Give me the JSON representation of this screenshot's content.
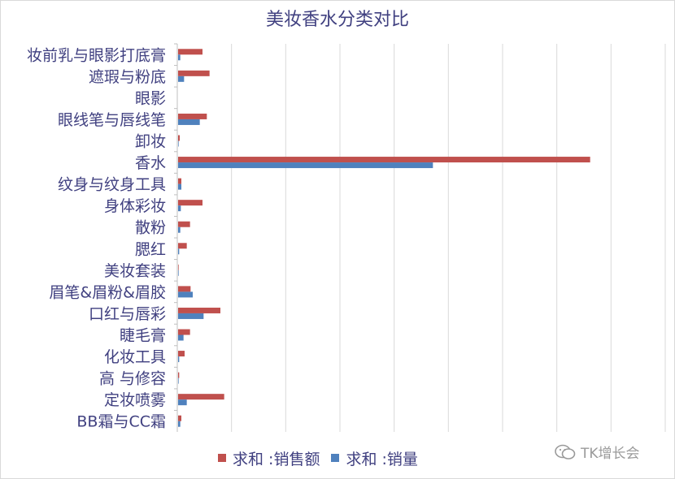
{
  "chart_data": {
    "type": "bar",
    "orientation": "horizontal",
    "title": "美妆香水分类对比",
    "categories": [
      "妆前乳与眼影打底膏",
      "遮瑕与粉底",
      "眼影",
      "眼线笔与唇线笔",
      "卸妆",
      "香水",
      "纹身与纹身工具",
      "身体彩妆",
      "散粉",
      "腮红",
      "美妆套装",
      "眉笔&眉粉&眉胶",
      "口红与唇彩",
      "睫毛膏",
      "化妆工具",
      "高   与修容",
      "定妆喷雾",
      "BB霜与CC霜"
    ],
    "series": [
      {
        "name": "求和   :销售额",
        "color": "#c0504d",
        "values": [
          45,
          58,
          0,
          53,
          3,
          760,
          6,
          45,
          22,
          16,
          1,
          23,
          78,
          22,
          12,
          2,
          85,
          6
        ]
      },
      {
        "name": "求和   :销量",
        "color": "#4f81bd",
        "values": [
          4,
          11,
          0,
          40,
          1,
          470,
          6,
          5,
          4,
          2,
          1,
          27,
          47,
          10,
          2,
          1,
          16,
          4
        ]
      }
    ],
    "xlim": [
      0,
      900
    ],
    "grid": true,
    "legend_position": "bottom"
  },
  "watermark": {
    "icon": "wechat-icon",
    "text": "TK增长会"
  }
}
